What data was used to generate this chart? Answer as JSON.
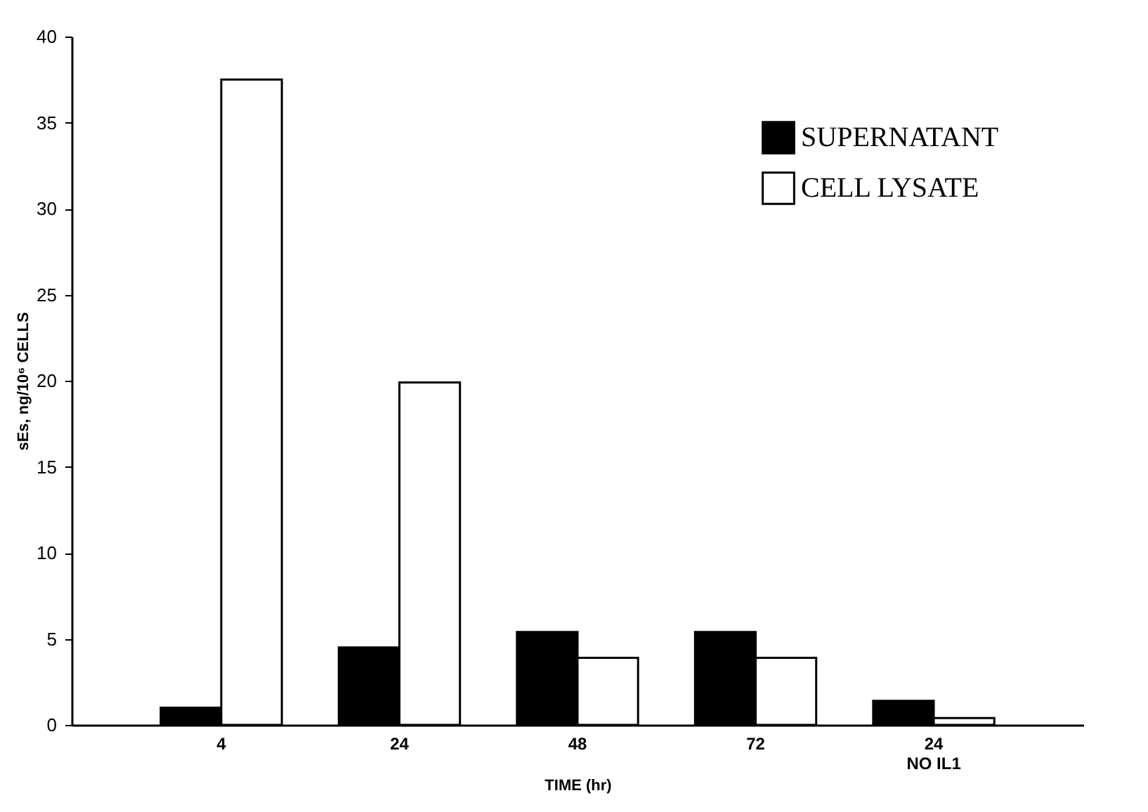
{
  "chart_data": {
    "type": "bar",
    "xlabel": "TIME (hr)",
    "ylabel": "sEs, ng/10⁶ CELLS",
    "categories": [
      "4",
      "24",
      "48",
      "72",
      "24\nNO IL1"
    ],
    "series": [
      {
        "name": "SUPERNATANT",
        "color": "#000000",
        "values": [
          1.0,
          4.5,
          5.4,
          5.4,
          1.4
        ]
      },
      {
        "name": "CELL LYSATE",
        "color": "#ffffff",
        "values": [
          37.5,
          19.9,
          3.9,
          3.9,
          0.4
        ]
      }
    ],
    "ylim": [
      0,
      40
    ],
    "yticks": [
      0,
      5,
      10,
      15,
      20,
      25,
      30,
      35,
      40
    ],
    "grid": false,
    "legend": "top right"
  }
}
